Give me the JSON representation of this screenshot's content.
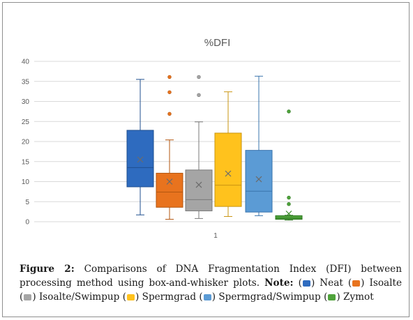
{
  "chart_data": {
    "type": "box",
    "title": "%DFI",
    "xlabel": "",
    "ylabel": "",
    "categories": [
      "1"
    ],
    "ylim": [
      0,
      40
    ],
    "yticks": [
      0,
      5,
      10,
      15,
      20,
      25,
      30,
      35,
      40
    ],
    "grid": true,
    "series": [
      {
        "name": "Neat",
        "color": "#2e6bbf",
        "stroke": "#1f4f8f",
        "min": 1.7,
        "q1": 8.7,
        "median": 13.5,
        "q3": 22.8,
        "max": 35.5,
        "mean": 15.5,
        "outliers": []
      },
      {
        "name": "Isoalte",
        "color": "#e8731e",
        "stroke": "#b3560f",
        "min": 0.6,
        "q1": 3.6,
        "median": 7.4,
        "q3": 12.1,
        "max": 20.4,
        "mean": 10.0,
        "outliers": [
          26.9,
          32.3,
          36.1
        ]
      },
      {
        "name": "Isoalte/Swimpup",
        "color": "#a5a5a5",
        "stroke": "#7a7a7a",
        "min": 0.8,
        "q1": 2.7,
        "median": 5.5,
        "q3": 12.9,
        "max": 24.9,
        "mean": 9.2,
        "outliers": [
          31.6,
          36.1
        ]
      },
      {
        "name": "Spermgrad",
        "color": "#ffc21d",
        "stroke": "#c99410",
        "min": 1.3,
        "q1": 3.8,
        "median": 9.1,
        "q3": 22.1,
        "max": 32.4,
        "mean": 12.0,
        "outliers": []
      },
      {
        "name": "Spermgrad/Swimpup",
        "color": "#5b9bd5",
        "stroke": "#3a74ad",
        "min": 1.5,
        "q1": 2.4,
        "median": 7.6,
        "q3": 17.8,
        "max": 36.3,
        "mean": 10.6,
        "outliers": []
      },
      {
        "name": "Zymot",
        "color": "#4fa33b",
        "stroke": "#2f7a22",
        "min": 0.4,
        "q1": 0.6,
        "median": 0.9,
        "q3": 1.5,
        "max": 1.6,
        "mean": 2.0,
        "outliers": [
          4.4,
          6.0,
          27.5
        ]
      }
    ]
  },
  "caption": {
    "label": "Figure 2:",
    "text": "Comparisons of DNA Fragmentation Index (DFI) between processing method using box-and-whisker plots.",
    "note_label": "Note:"
  },
  "legend": [
    {
      "name": "Neat",
      "color": "#2e6bbf"
    },
    {
      "name": "Isoalte",
      "color": "#e8731e"
    },
    {
      "name": "Isoalte/Swimpup",
      "color": "#a5a5a5"
    },
    {
      "name": "Spermgrad",
      "color": "#ffc21d"
    },
    {
      "name": "Spermgrad/Swimpup",
      "color": "#5b9bd5"
    },
    {
      "name": "Zymot",
      "color": "#4fa33b"
    }
  ]
}
